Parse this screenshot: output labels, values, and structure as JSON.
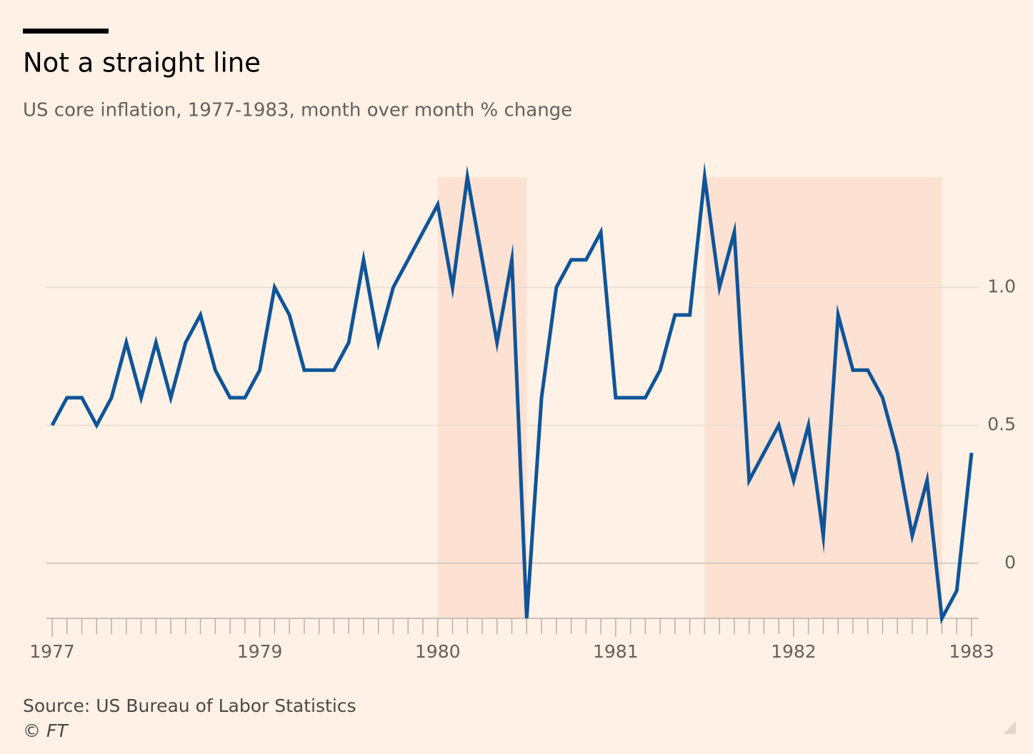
{
  "chart_data": {
    "type": "line",
    "title": "Not a straight line",
    "subtitle": "US core inflation, 1977-1983, month over month % change",
    "source": "Source: US Bureau of Labor Statistics",
    "credit": "© FT",
    "categories": [
      "1977",
      null,
      null,
      null,
      null,
      null,
      null,
      null,
      null,
      null,
      null,
      null,
      null,
      null,
      "1979",
      null,
      null,
      null,
      null,
      null,
      null,
      null,
      null,
      null,
      null,
      null,
      "1980",
      null,
      null,
      null,
      null,
      null,
      null,
      null,
      null,
      null,
      null,
      null,
      "1981",
      null,
      null,
      null,
      null,
      null,
      null,
      null,
      null,
      null,
      null,
      null,
      "1982",
      null,
      null,
      null,
      null,
      null,
      null,
      null,
      null,
      null,
      null,
      null,
      "1983"
    ],
    "series": [
      {
        "name": "US core inflation",
        "color": "#0f5499",
        "values": [
          0.5,
          0.6,
          0.6,
          0.5,
          0.6,
          0.8,
          0.6,
          0.8,
          0.6,
          0.8,
          0.9,
          0.7,
          0.6,
          0.6,
          0.7,
          1.0,
          0.9,
          0.7,
          0.7,
          0.7,
          0.8,
          1.1,
          0.8,
          1.0,
          1.1,
          1.2,
          1.3,
          1.0,
          1.4,
          1.1,
          0.8,
          1.1,
          -0.2,
          0.6,
          1.0,
          1.1,
          1.1,
          1.2,
          0.6,
          0.6,
          0.6,
          0.7,
          0.9,
          0.9,
          1.4,
          1.0,
          1.2,
          0.3,
          0.4,
          0.5,
          0.3,
          0.5,
          0.1,
          0.9,
          0.7,
          0.7,
          0.6,
          0.4,
          0.1,
          0.3,
          -0.2,
          -0.1,
          0.4
        ]
      }
    ],
    "shaded": [
      [
        26,
        32
      ],
      [
        44,
        60
      ]
    ],
    "shade_color": "#fde1d2",
    "ylim": [
      -0.2,
      1.4
    ],
    "yticks": [
      0,
      0.5,
      {
        "value": 1.0,
        "label": "1.0"
      }
    ],
    "grid": true
  }
}
